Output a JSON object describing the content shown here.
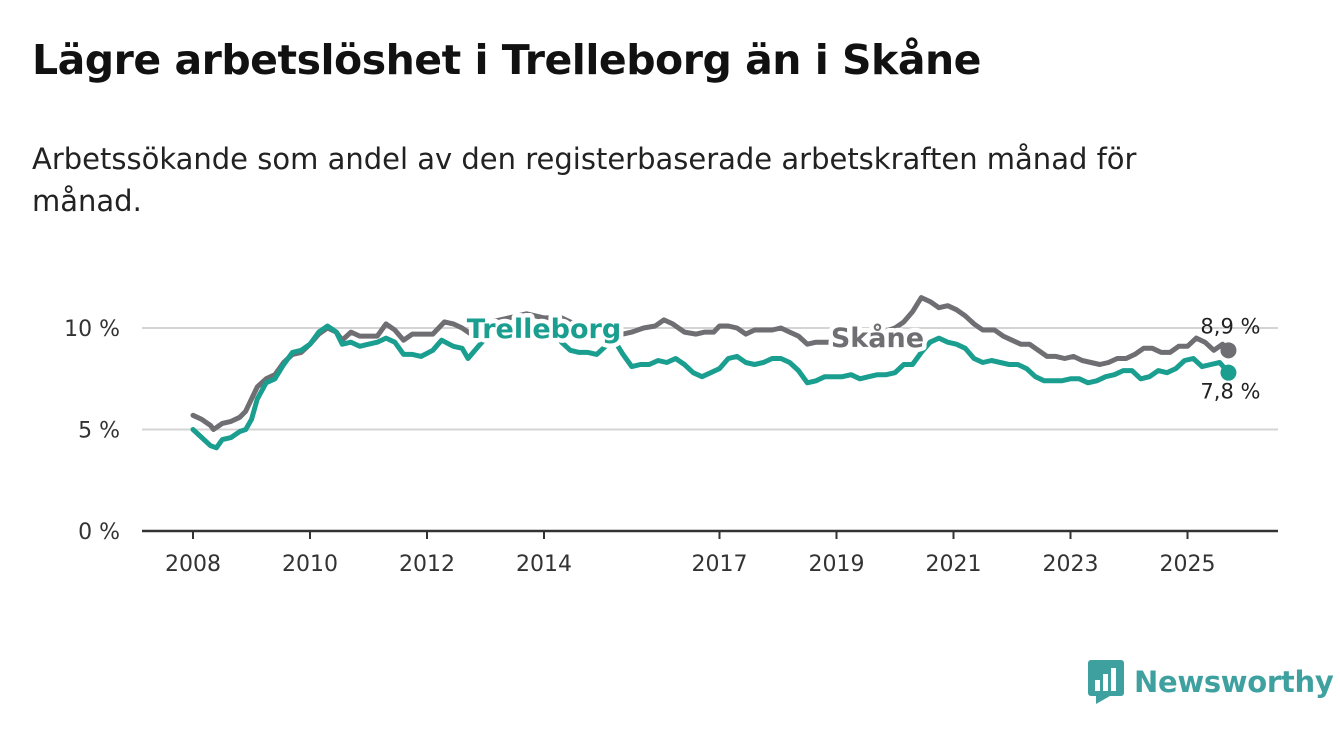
{
  "title": "Lägre arbetslöshet i Trelleborg än i Skåne",
  "subtitle": "Arbetssökande som andel av den registerbaserade arbetskraften månad för månad.",
  "brand": {
    "name": "Newsworthy",
    "color": "#3fa0a0",
    "icon": "newsworthy-bar-chart-icon"
  },
  "chart_data": {
    "type": "line",
    "title": "Lägre arbetslöshet i Trelleborg än i Skåne",
    "xlabel": "",
    "ylabel": "",
    "xlim": [
      2008,
      2025.7
    ],
    "ylim": [
      0,
      10
    ],
    "x_ticks": [
      {
        "value": 2008,
        "label": "2008"
      },
      {
        "value": 2010,
        "label": "2010"
      },
      {
        "value": 2012,
        "label": "2012"
      },
      {
        "value": 2014,
        "label": "2014"
      },
      {
        "value": 2017,
        "label": "2017"
      },
      {
        "value": 2019,
        "label": "2019"
      },
      {
        "value": 2021,
        "label": "2021"
      },
      {
        "value": 2023,
        "label": "2023"
      },
      {
        "value": 2025,
        "label": "2025"
      }
    ],
    "y_ticks": [
      {
        "value": 0,
        "label": "0 %"
      },
      {
        "value": 5,
        "label": "5 %"
      },
      {
        "value": 10,
        "label": "10 %"
      }
    ],
    "grid": true,
    "series": [
      {
        "name": "Skåne",
        "color": "#6e6e73",
        "end_label": "8,9 %",
        "points": [
          [
            2008.0,
            5.7
          ],
          [
            2008.15,
            5.5
          ],
          [
            2008.3,
            5.2
          ],
          [
            2008.35,
            5.0
          ],
          [
            2008.5,
            5.3
          ],
          [
            2008.65,
            5.4
          ],
          [
            2008.8,
            5.6
          ],
          [
            2008.9,
            5.9
          ],
          [
            2009.0,
            6.5
          ],
          [
            2009.1,
            7.1
          ],
          [
            2009.25,
            7.5
          ],
          [
            2009.4,
            7.7
          ],
          [
            2009.55,
            8.3
          ],
          [
            2009.7,
            8.7
          ],
          [
            2009.85,
            8.8
          ],
          [
            2010.0,
            9.2
          ],
          [
            2010.15,
            9.7
          ],
          [
            2010.3,
            10.0
          ],
          [
            2010.45,
            9.8
          ],
          [
            2010.55,
            9.4
          ],
          [
            2010.7,
            9.8
          ],
          [
            2010.85,
            9.6
          ],
          [
            2011.0,
            9.6
          ],
          [
            2011.15,
            9.6
          ],
          [
            2011.3,
            10.2
          ],
          [
            2011.45,
            9.9
          ],
          [
            2011.6,
            9.4
          ],
          [
            2011.75,
            9.7
          ],
          [
            2011.9,
            9.7
          ],
          [
            2012.1,
            9.7
          ],
          [
            2012.3,
            10.3
          ],
          [
            2012.45,
            10.2
          ],
          [
            2012.6,
            10.0
          ],
          [
            2012.75,
            9.7
          ],
          [
            2012.9,
            10.1
          ],
          [
            2013.1,
            10.3
          ],
          [
            2013.4,
            10.5
          ],
          [
            2013.7,
            10.7
          ],
          [
            2014.0,
            10.5
          ],
          [
            2014.3,
            10.5
          ],
          [
            2014.6,
            10.1
          ],
          [
            2014.9,
            9.8
          ],
          [
            2015.2,
            9.6
          ],
          [
            2015.5,
            9.8
          ],
          [
            2015.7,
            10.0
          ],
          [
            2015.9,
            10.1
          ],
          [
            2016.05,
            10.4
          ],
          [
            2016.2,
            10.2
          ],
          [
            2016.4,
            9.8
          ],
          [
            2016.6,
            9.7
          ],
          [
            2016.75,
            9.8
          ],
          [
            2016.9,
            9.8
          ],
          [
            2017.0,
            10.1
          ],
          [
            2017.15,
            10.1
          ],
          [
            2017.3,
            10.0
          ],
          [
            2017.45,
            9.7
          ],
          [
            2017.6,
            9.9
          ],
          [
            2017.75,
            9.9
          ],
          [
            2017.9,
            9.9
          ],
          [
            2018.05,
            10.0
          ],
          [
            2018.2,
            9.8
          ],
          [
            2018.35,
            9.6
          ],
          [
            2018.5,
            9.2
          ],
          [
            2018.65,
            9.3
          ],
          [
            2018.8,
            9.3
          ],
          [
            2018.95,
            9.3
          ],
          [
            2019.1,
            9.2
          ],
          [
            2019.25,
            9.5
          ],
          [
            2019.4,
            9.6
          ],
          [
            2019.6,
            9.7
          ],
          [
            2019.8,
            9.8
          ],
          [
            2020.0,
            10.0
          ],
          [
            2020.15,
            10.3
          ],
          [
            2020.3,
            10.8
          ],
          [
            2020.45,
            11.5
          ],
          [
            2020.6,
            11.3
          ],
          [
            2020.75,
            11.0
          ],
          [
            2020.9,
            11.1
          ],
          [
            2021.05,
            10.9
          ],
          [
            2021.2,
            10.6
          ],
          [
            2021.35,
            10.2
          ],
          [
            2021.5,
            9.9
          ],
          [
            2021.7,
            9.9
          ],
          [
            2021.85,
            9.6
          ],
          [
            2022.0,
            9.4
          ],
          [
            2022.15,
            9.2
          ],
          [
            2022.3,
            9.2
          ],
          [
            2022.45,
            8.9
          ],
          [
            2022.6,
            8.6
          ],
          [
            2022.75,
            8.6
          ],
          [
            2022.9,
            8.5
          ],
          [
            2023.05,
            8.6
          ],
          [
            2023.2,
            8.4
          ],
          [
            2023.35,
            8.3
          ],
          [
            2023.5,
            8.2
          ],
          [
            2023.65,
            8.3
          ],
          [
            2023.8,
            8.5
          ],
          [
            2023.95,
            8.5
          ],
          [
            2024.1,
            8.7
          ],
          [
            2024.25,
            9.0
          ],
          [
            2024.4,
            9.0
          ],
          [
            2024.55,
            8.8
          ],
          [
            2024.7,
            8.8
          ],
          [
            2024.85,
            9.1
          ],
          [
            2025.0,
            9.1
          ],
          [
            2025.15,
            9.5
          ],
          [
            2025.3,
            9.3
          ],
          [
            2025.45,
            8.9
          ],
          [
            2025.6,
            9.2
          ],
          [
            2025.7,
            8.9
          ]
        ]
      },
      {
        "name": "Trelleborg",
        "color": "#1a9e8f",
        "end_label": "7,8 %",
        "points": [
          [
            2008.0,
            5.0
          ],
          [
            2008.15,
            4.6
          ],
          [
            2008.3,
            4.2
          ],
          [
            2008.4,
            4.1
          ],
          [
            2008.5,
            4.5
          ],
          [
            2008.65,
            4.6
          ],
          [
            2008.8,
            4.9
          ],
          [
            2008.9,
            5.0
          ],
          [
            2009.0,
            5.5
          ],
          [
            2009.1,
            6.5
          ],
          [
            2009.25,
            7.3
          ],
          [
            2009.4,
            7.5
          ],
          [
            2009.55,
            8.2
          ],
          [
            2009.7,
            8.8
          ],
          [
            2009.85,
            8.9
          ],
          [
            2010.0,
            9.2
          ],
          [
            2010.15,
            9.8
          ],
          [
            2010.3,
            10.1
          ],
          [
            2010.45,
            9.8
          ],
          [
            2010.55,
            9.2
          ],
          [
            2010.7,
            9.3
          ],
          [
            2010.85,
            9.1
          ],
          [
            2011.0,
            9.2
          ],
          [
            2011.15,
            9.3
          ],
          [
            2011.3,
            9.5
          ],
          [
            2011.45,
            9.3
          ],
          [
            2011.6,
            8.7
          ],
          [
            2011.75,
            8.7
          ],
          [
            2011.9,
            8.6
          ],
          [
            2012.1,
            8.9
          ],
          [
            2012.25,
            9.4
          ],
          [
            2012.45,
            9.1
          ],
          [
            2012.6,
            9.0
          ],
          [
            2012.7,
            8.5
          ],
          [
            2012.85,
            9.0
          ],
          [
            2013.0,
            9.5
          ],
          [
            2013.2,
            9.8
          ],
          [
            2013.5,
            10.0
          ],
          [
            2013.8,
            10.1
          ],
          [
            2014.0,
            10.0
          ],
          [
            2014.2,
            9.9
          ],
          [
            2014.3,
            9.3
          ],
          [
            2014.45,
            8.9
          ],
          [
            2014.6,
            8.8
          ],
          [
            2014.75,
            8.8
          ],
          [
            2014.9,
            8.7
          ],
          [
            2015.05,
            9.1
          ],
          [
            2015.2,
            9.4
          ],
          [
            2015.35,
            8.7
          ],
          [
            2015.5,
            8.1
          ],
          [
            2015.65,
            8.2
          ],
          [
            2015.8,
            8.2
          ],
          [
            2015.95,
            8.4
          ],
          [
            2016.1,
            8.3
          ],
          [
            2016.25,
            8.5
          ],
          [
            2016.4,
            8.2
          ],
          [
            2016.55,
            7.8
          ],
          [
            2016.7,
            7.6
          ],
          [
            2016.85,
            7.8
          ],
          [
            2017.0,
            8.0
          ],
          [
            2017.15,
            8.5
          ],
          [
            2017.3,
            8.6
          ],
          [
            2017.45,
            8.3
          ],
          [
            2017.6,
            8.2
          ],
          [
            2017.75,
            8.3
          ],
          [
            2017.9,
            8.5
          ],
          [
            2018.05,
            8.5
          ],
          [
            2018.2,
            8.3
          ],
          [
            2018.35,
            7.9
          ],
          [
            2018.5,
            7.3
          ],
          [
            2018.65,
            7.4
          ],
          [
            2018.8,
            7.6
          ],
          [
            2018.95,
            7.6
          ],
          [
            2019.1,
            7.6
          ],
          [
            2019.25,
            7.7
          ],
          [
            2019.4,
            7.5
          ],
          [
            2019.55,
            7.6
          ],
          [
            2019.7,
            7.7
          ],
          [
            2019.85,
            7.7
          ],
          [
            2020.0,
            7.8
          ],
          [
            2020.15,
            8.2
          ],
          [
            2020.3,
            8.2
          ],
          [
            2020.45,
            8.8
          ],
          [
            2020.6,
            9.3
          ],
          [
            2020.75,
            9.5
          ],
          [
            2020.9,
            9.3
          ],
          [
            2021.05,
            9.2
          ],
          [
            2021.2,
            9.0
          ],
          [
            2021.35,
            8.5
          ],
          [
            2021.5,
            8.3
          ],
          [
            2021.65,
            8.4
          ],
          [
            2021.8,
            8.3
          ],
          [
            2021.95,
            8.2
          ],
          [
            2022.1,
            8.2
          ],
          [
            2022.25,
            8.0
          ],
          [
            2022.4,
            7.6
          ],
          [
            2022.55,
            7.4
          ],
          [
            2022.7,
            7.4
          ],
          [
            2022.85,
            7.4
          ],
          [
            2023.0,
            7.5
          ],
          [
            2023.15,
            7.5
          ],
          [
            2023.3,
            7.3
          ],
          [
            2023.45,
            7.4
          ],
          [
            2023.6,
            7.6
          ],
          [
            2023.75,
            7.7
          ],
          [
            2023.9,
            7.9
          ],
          [
            2024.05,
            7.9
          ],
          [
            2024.2,
            7.5
          ],
          [
            2024.35,
            7.6
          ],
          [
            2024.5,
            7.9
          ],
          [
            2024.65,
            7.8
          ],
          [
            2024.8,
            8.0
          ],
          [
            2024.95,
            8.4
          ],
          [
            2025.1,
            8.5
          ],
          [
            2025.25,
            8.1
          ],
          [
            2025.4,
            8.2
          ],
          [
            2025.55,
            8.3
          ],
          [
            2025.7,
            7.8
          ]
        ]
      }
    ]
  }
}
